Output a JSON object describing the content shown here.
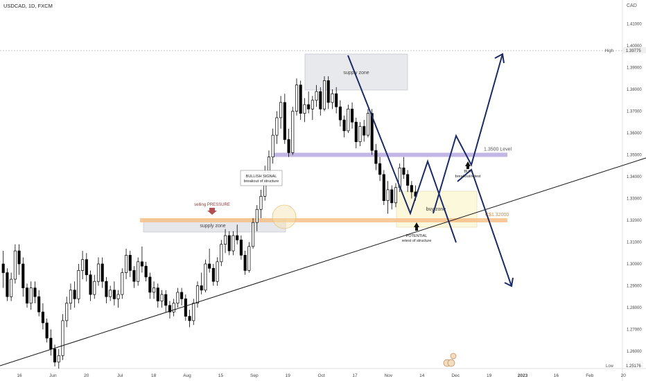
{
  "header": {
    "symbol": "USDCAD, 1D, FXCM"
  },
  "price_axis": {
    "currency": "CAD"
  },
  "colors": {
    "up_candle": "#ffffff",
    "down_candle": "#000000",
    "trend_line": "#111111",
    "projection": "#1a2a66",
    "resistance_band": "#b7a9e0",
    "support_band": "#f6c08a",
    "supply_box": "#cfd3da",
    "buy_box": "#fbf5cf",
    "arrow": "#1a2a66",
    "pressure_arrow": "#b05050"
  },
  "annotations": {
    "supply_zone_top": "supply zone",
    "supply_zone_bottom": "supply zone",
    "buy_zone": "buy zone",
    "level_1350": "1.3500 Level",
    "level_132": "C$1.32000",
    "selling_pressure": "selling PRESSURE",
    "bullish_signal": "BULLISH SIGNAL",
    "bullish_signal_sub": "breakout of structure",
    "buy": "BUY",
    "buy_sub": "breakout/retest",
    "potential": "POTENTIAL",
    "potential_sub": "retest of structure"
  },
  "chart_data": {
    "type": "candlestick",
    "title": "USDCAD, 1D, FXCM",
    "y_unit": "CAD",
    "ylim": [
      1.25,
      1.415
    ],
    "y_ticks": [
      1.26,
      1.27,
      1.28,
      1.29,
      1.3,
      1.31,
      1.32,
      1.33,
      1.34,
      1.35,
      1.36,
      1.37,
      1.38,
      1.39,
      1.4,
      1.41
    ],
    "y_tick_labels": [
      "1.26000",
      "1.27000",
      "1.28000",
      "1.29000",
      "1.30000",
      "1.31000",
      "1.32000",
      "1.33000",
      "1.34000",
      "1.35000",
      "1.36000",
      "1.37000",
      "1.38000",
      "1.39000",
      "1.40000",
      "1.41000"
    ],
    "x_ticks": [
      "16",
      "Jun",
      "20",
      "Jul",
      "18",
      "Aug",
      "15",
      "Sep",
      "19",
      "Oct",
      "17",
      "Nov",
      "14",
      "Dec",
      "19",
      "2023",
      "16",
      "Feb",
      "20"
    ],
    "high_label": "High",
    "high_value": "1.39775",
    "low_label": "Low",
    "low_value": "1.25176",
    "levels": [
      {
        "name": "1.3500 Level",
        "value": 1.35
      },
      {
        "name": "C$1.32000",
        "value": 1.32
      }
    ],
    "candles": [
      [
        1.3,
        1.306,
        1.289,
        1.296
      ],
      [
        1.296,
        1.298,
        1.283,
        1.285
      ],
      [
        1.285,
        1.296,
        1.283,
        1.293
      ],
      [
        1.293,
        1.309,
        1.291,
        1.306
      ],
      [
        1.306,
        1.309,
        1.295,
        1.3
      ],
      [
        1.3,
        1.303,
        1.285,
        1.289
      ],
      [
        1.289,
        1.291,
        1.28,
        1.282
      ],
      [
        1.282,
        1.292,
        1.279,
        1.289
      ],
      [
        1.289,
        1.292,
        1.282,
        1.285
      ],
      [
        1.285,
        1.288,
        1.276,
        1.278
      ],
      [
        1.278,
        1.282,
        1.27,
        1.273
      ],
      [
        1.273,
        1.275,
        1.264,
        1.266
      ],
      [
        1.266,
        1.27,
        1.258,
        1.261
      ],
      [
        1.261,
        1.263,
        1.253,
        1.255
      ],
      [
        1.255,
        1.261,
        1.252,
        1.258
      ],
      [
        1.258,
        1.277,
        1.256,
        1.274
      ],
      [
        1.274,
        1.285,
        1.271,
        1.282
      ],
      [
        1.282,
        1.291,
        1.279,
        1.288
      ],
      [
        1.288,
        1.292,
        1.28,
        1.284
      ],
      [
        1.284,
        1.3,
        1.282,
        1.297
      ],
      [
        1.297,
        1.306,
        1.293,
        1.302
      ],
      [
        1.302,
        1.305,
        1.292,
        1.295
      ],
      [
        1.295,
        1.297,
        1.283,
        1.286
      ],
      [
        1.286,
        1.295,
        1.284,
        1.292
      ],
      [
        1.292,
        1.303,
        1.29,
        1.3
      ],
      [
        1.3,
        1.303,
        1.289,
        1.292
      ],
      [
        1.292,
        1.294,
        1.282,
        1.285
      ],
      [
        1.285,
        1.29,
        1.283,
        1.288
      ],
      [
        1.288,
        1.292,
        1.281,
        1.284
      ],
      [
        1.284,
        1.288,
        1.28,
        1.286
      ],
      [
        1.286,
        1.298,
        1.284,
        1.296
      ],
      [
        1.296,
        1.307,
        1.293,
        1.304
      ],
      [
        1.304,
        1.306,
        1.294,
        1.297
      ],
      [
        1.297,
        1.299,
        1.289,
        1.292
      ],
      [
        1.292,
        1.303,
        1.29,
        1.301
      ],
      [
        1.301,
        1.308,
        1.296,
        1.299
      ],
      [
        1.299,
        1.301,
        1.292,
        1.294
      ],
      [
        1.294,
        1.296,
        1.284,
        1.287
      ],
      [
        1.287,
        1.292,
        1.284,
        1.289
      ],
      [
        1.289,
        1.291,
        1.28,
        1.283
      ],
      [
        1.283,
        1.288,
        1.28,
        1.286
      ],
      [
        1.286,
        1.288,
        1.278,
        1.281
      ],
      [
        1.281,
        1.283,
        1.275,
        1.278
      ],
      [
        1.278,
        1.284,
        1.276,
        1.282
      ],
      [
        1.282,
        1.289,
        1.28,
        1.287
      ],
      [
        1.287,
        1.289,
        1.281,
        1.284
      ],
      [
        1.284,
        1.286,
        1.274,
        1.276
      ],
      [
        1.276,
        1.279,
        1.271,
        1.274
      ],
      [
        1.274,
        1.284,
        1.272,
        1.282
      ],
      [
        1.282,
        1.292,
        1.28,
        1.29
      ],
      [
        1.29,
        1.296,
        1.286,
        1.288
      ],
      [
        1.288,
        1.302,
        1.287,
        1.3
      ],
      [
        1.3,
        1.307,
        1.296,
        1.298
      ],
      [
        1.298,
        1.3,
        1.29,
        1.292
      ],
      [
        1.292,
        1.303,
        1.29,
        1.301
      ],
      [
        1.301,
        1.311,
        1.299,
        1.309
      ],
      [
        1.309,
        1.316,
        1.305,
        1.313
      ],
      [
        1.313,
        1.315,
        1.304,
        1.306
      ],
      [
        1.306,
        1.315,
        1.304,
        1.313
      ],
      [
        1.313,
        1.318,
        1.309,
        1.311
      ],
      [
        1.311,
        1.313,
        1.302,
        1.304
      ],
      [
        1.304,
        1.306,
        1.295,
        1.297
      ],
      [
        1.297,
        1.31,
        1.296,
        1.308
      ],
      [
        1.308,
        1.321,
        1.307,
        1.319
      ],
      [
        1.319,
        1.327,
        1.315,
        1.325
      ],
      [
        1.325,
        1.334,
        1.321,
        1.331
      ],
      [
        1.331,
        1.345,
        1.329,
        1.342
      ],
      [
        1.342,
        1.352,
        1.339,
        1.349
      ],
      [
        1.349,
        1.362,
        1.346,
        1.359
      ],
      [
        1.359,
        1.37,
        1.355,
        1.367
      ],
      [
        1.367,
        1.377,
        1.362,
        1.374
      ],
      [
        1.374,
        1.378,
        1.355,
        1.357
      ],
      [
        1.357,
        1.362,
        1.349,
        1.351
      ],
      [
        1.351,
        1.372,
        1.35,
        1.37
      ],
      [
        1.37,
        1.385,
        1.368,
        1.382
      ],
      [
        1.382,
        1.384,
        1.366,
        1.369
      ],
      [
        1.369,
        1.376,
        1.365,
        1.373
      ],
      [
        1.373,
        1.379,
        1.369,
        1.371
      ],
      [
        1.371,
        1.377,
        1.366,
        1.375
      ],
      [
        1.375,
        1.382,
        1.372,
        1.379
      ],
      [
        1.379,
        1.381,
        1.368,
        1.371
      ],
      [
        1.371,
        1.386,
        1.37,
        1.384
      ],
      [
        1.384,
        1.386,
        1.371,
        1.374
      ],
      [
        1.374,
        1.38,
        1.371,
        1.378
      ],
      [
        1.378,
        1.381,
        1.369,
        1.372
      ],
      [
        1.372,
        1.375,
        1.363,
        1.366
      ],
      [
        1.366,
        1.368,
        1.358,
        1.361
      ],
      [
        1.361,
        1.373,
        1.36,
        1.371
      ],
      [
        1.371,
        1.374,
        1.362,
        1.365
      ],
      [
        1.365,
        1.367,
        1.353,
        1.356
      ],
      [
        1.356,
        1.365,
        1.354,
        1.363
      ],
      [
        1.363,
        1.366,
        1.356,
        1.359
      ],
      [
        1.359,
        1.371,
        1.358,
        1.369
      ],
      [
        1.369,
        1.371,
        1.35,
        1.352
      ],
      [
        1.352,
        1.355,
        1.343,
        1.346
      ],
      [
        1.346,
        1.349,
        1.338,
        1.341
      ],
      [
        1.341,
        1.343,
        1.327,
        1.329
      ],
      [
        1.329,
        1.338,
        1.323,
        1.334
      ],
      [
        1.334,
        1.336,
        1.325,
        1.328
      ],
      [
        1.328,
        1.337,
        1.326,
        1.335
      ],
      [
        1.335,
        1.346,
        1.333,
        1.344
      ],
      [
        1.344,
        1.349,
        1.339,
        1.341
      ],
      [
        1.341,
        1.343,
        1.333,
        1.336
      ],
      [
        1.336,
        1.338,
        1.33,
        1.333
      ],
      [
        1.333,
        1.336,
        1.329,
        1.331
      ]
    ]
  }
}
